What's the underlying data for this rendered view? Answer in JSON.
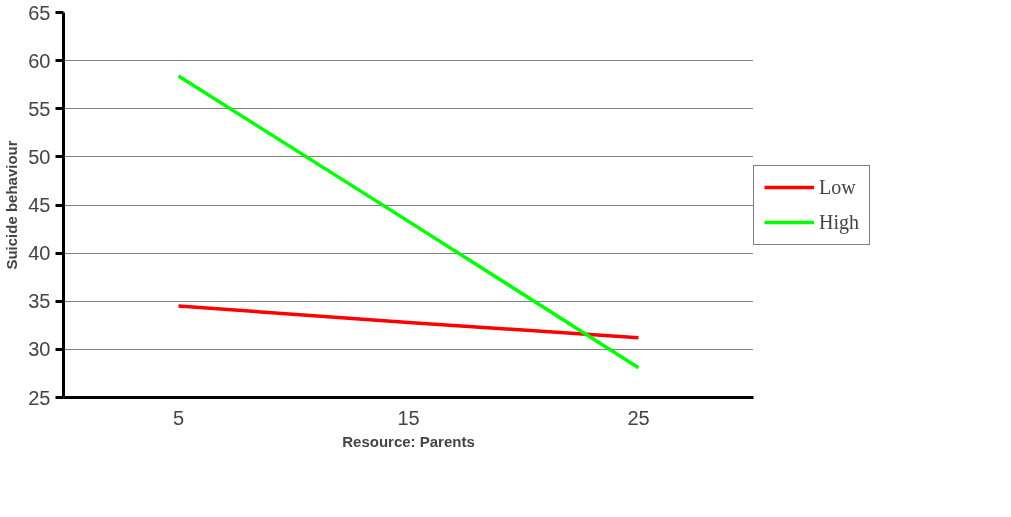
{
  "chart_data": {
    "type": "line",
    "xlabel": "Resource: Parents",
    "ylabel": "Suicide behaviour",
    "categories": [
      "5",
      "15",
      "25"
    ],
    "series": [
      {
        "name": "Low",
        "color": "#ff0000",
        "values": [
          34.5,
          32.8,
          31.2
        ]
      },
      {
        "name": "High",
        "color": "#00ff00",
        "values": [
          58.4,
          43.3,
          28.1
        ]
      }
    ],
    "ylim": [
      25,
      65
    ],
    "yticks": [
      25,
      30,
      35,
      40,
      45,
      50,
      55,
      60,
      65
    ],
    "grid": "y",
    "legend": "right",
    "marker": "none",
    "line_style": "solid"
  }
}
